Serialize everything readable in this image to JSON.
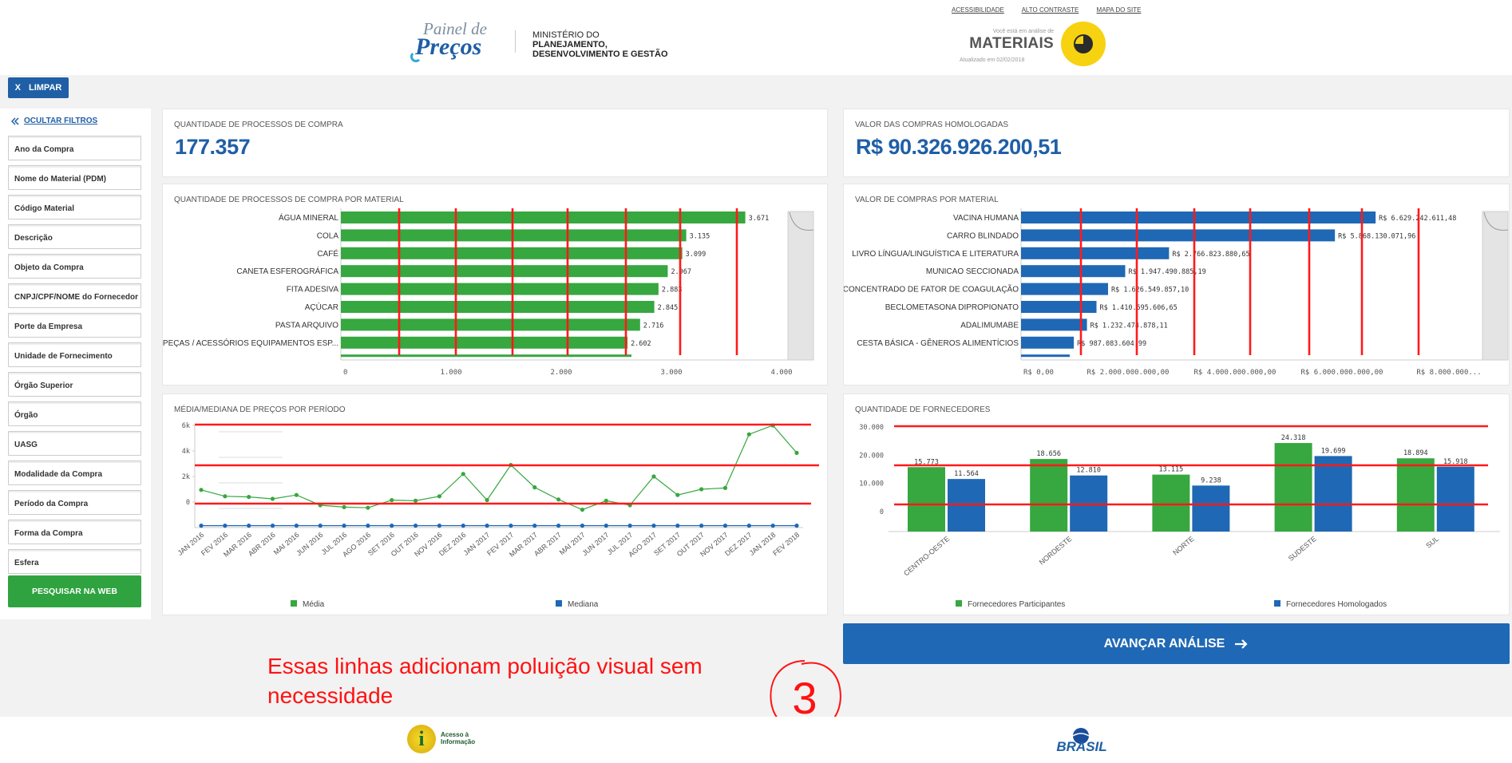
{
  "header": {
    "brand": {
      "line1": "Painel de",
      "line2": "Preços"
    },
    "ministry": {
      "line1": "MINISTÉRIO DO",
      "line2": "PLANEJAMENTO,",
      "line3": "DESENVOLVIMENTO E GESTÃO"
    },
    "links": [
      "ACESSIBILIDADE",
      "ALTO CONTRASTE",
      "MAPA DO SITE"
    ],
    "context": {
      "prefix": "Você está em análise de",
      "title": "MATERIAIS",
      "updated": "Atualizado em 02/02/2018"
    }
  },
  "toolbar": {
    "clear_icon": "X",
    "clear_label": "LIMPAR"
  },
  "sidebar": {
    "hide_label": "OCULTAR FILTROS",
    "filters": [
      "Ano da Compra",
      "Nome do Material (PDM)",
      "Código Material",
      "Descrição",
      "Objeto da Compra",
      "CNPJ/CPF/NOME do Fornecedor",
      "Porte da Empresa",
      "Unidade de Fornecimento",
      "Órgão Superior",
      "Órgão",
      "UASG",
      "Modalidade da Compra",
      "Período da Compra",
      "Forma da Compra",
      "Esfera"
    ],
    "search_label": "PESQUISAR NA WEB"
  },
  "kpis": {
    "processes": {
      "title": "QUANTIDADE DE PROCESSOS DE COMPRA",
      "value": "177.357"
    },
    "value": {
      "title": "VALOR DAS COMPRAS HOMOLOGADAS",
      "value": "R$ 90.326.926.200,51"
    }
  },
  "colors": {
    "green": "#37a73f",
    "blue": "#1f68b5",
    "red": "#ff1a1a",
    "annotation": "#ff1212"
  },
  "chart_data": [
    {
      "type": "bar",
      "orientation": "horizontal",
      "title": "QUANTIDADE DE PROCESSOS DE COMPRA POR MATERIAL",
      "categories": [
        "ÁGUA MINERAL",
        "COLA",
        "CAFÉ",
        "CANETA ESFEROGRÁFICA",
        "FITA ADESIVA",
        "AÇÚCAR",
        "PASTA ARQUIVO",
        "PEÇAS / ACESSÓRIOS EQUIPAMENTOS ESP..."
      ],
      "values": [
        3671,
        3135,
        3099,
        2967,
        2883,
        2845,
        2716,
        2602
      ],
      "labels": [
        "3.671",
        "3.135",
        "3.099",
        "2.967",
        "2.883",
        "2.845",
        "2.716",
        "2.602"
      ],
      "xlim": [
        0,
        4000
      ],
      "xticks": [
        {
          "v": 0,
          "l": "0"
        },
        {
          "v": 1000,
          "l": "1.000"
        },
        {
          "v": 2000,
          "l": "2.000"
        },
        {
          "v": 3000,
          "l": "3.000"
        },
        {
          "v": 4000,
          "l": "4.000"
        }
      ],
      "color": "#37a73f"
    },
    {
      "type": "bar",
      "orientation": "horizontal",
      "title": "VALOR DE COMPRAS POR MATERIAL",
      "categories": [
        "VACINA HUMANA",
        "CARRO BLINDADO",
        "LIVRO LÍNGUA/LINGUÍSTICA E LITERATURA",
        "MUNICAO SECCIONADA",
        "CONCENTRADO DE FATOR DE COAGULAÇÃO",
        "BECLOMETASONA DIPROPIONATO",
        "ADALIMUMABE",
        "CESTA BÁSICA - GÊNEROS ALIMENTÍCIOS"
      ],
      "values": [
        6629242611.48,
        5868130071.96,
        2766823880.65,
        1947490885.19,
        1626549857.1,
        1410595606.65,
        1232474878.11,
        987083604.99
      ],
      "labels": [
        "R$ 6.629.242.611,48",
        "R$ 5.868.130.071,96",
        "R$ 2.766.823.880,65",
        "R$ 1.947.490.885,19",
        "R$ 1.626.549.857,10",
        "R$ 1.410.595.606,65",
        "R$ 1.232.474.878,11",
        "R$ 987.083.604,99"
      ],
      "xlim": [
        0,
        8000000000
      ],
      "xticks": [
        {
          "v": 0,
          "l": "R$ 0,00"
        },
        {
          "v": 2000000000,
          "l": "R$ 2.000.000.000,00"
        },
        {
          "v": 4000000000,
          "l": "R$ 4.000.000.000,00"
        },
        {
          "v": 6000000000,
          "l": "R$ 6.000.000.000,00"
        },
        {
          "v": 8000000000,
          "l": "R$ 8.000.000..."
        }
      ],
      "color": "#1f68b5"
    },
    {
      "type": "line",
      "title": "MÉDIA/MEDIANA DE PREÇOS POR PERÍODO",
      "categories": [
        "JAN 2016",
        "FEV 2016",
        "MAR 2016",
        "ABR 2016",
        "MAI 2016",
        "JUN 2016",
        "JUL 2016",
        "AGO 2016",
        "SET 2016",
        "OUT 2016",
        "NOV 2016",
        "DEZ 2016",
        "JAN 2017",
        "FEV 2017",
        "MAR 2017",
        "ABR 2017",
        "MAI 2017",
        "JUN 2017",
        "JUL 2017",
        "AGO 2017",
        "SET 2017",
        "OUT 2017",
        "NOV 2017",
        "DEZ 2017",
        "JAN 2018",
        "FEV 2018"
      ],
      "series": [
        {
          "name": "Média",
          "color": "#37a73f",
          "values": [
            950,
            450,
            400,
            250,
            550,
            -250,
            -400,
            -450,
            150,
            100,
            450,
            2200,
            150,
            2900,
            1150,
            200,
            -600,
            100,
            -250,
            2000,
            550,
            1000,
            1100,
            5300,
            6000,
            3850
          ]
        },
        {
          "name": "Mediana",
          "color": "#1f68b5",
          "values": [
            -1850,
            -1850,
            -1850,
            -1850,
            -1850,
            -1850,
            -1850,
            -1850,
            -1850,
            -1850,
            -1850,
            -1850,
            -1850,
            -1850,
            -1850,
            -1850,
            -1850,
            -1850,
            -1850,
            -1850,
            -1850,
            -1850,
            -1850,
            -1850,
            -1850,
            -1850
          ]
        }
      ],
      "ylim": [
        -2000,
        6000
      ],
      "yticks": [
        {
          "v": 0,
          "l": "0"
        },
        {
          "v": 2000,
          "l": "2k"
        },
        {
          "v": 4000,
          "l": "4k"
        },
        {
          "v": 6000,
          "l": "6k"
        }
      ],
      "legend": "bottom"
    },
    {
      "type": "bar",
      "title": "QUANTIDADE DE FORNECEDORES",
      "categories": [
        "CENTRO-OESTE",
        "NORDESTE",
        "NORTE",
        "SUDESTE",
        "SUL"
      ],
      "series": [
        {
          "name": "Fornecedores Participantes",
          "color": "#37a73f",
          "values": [
            15773,
            18656,
            13115,
            24318,
            18894
          ],
          "labels": [
            "15.773",
            "18.656",
            "13.115",
            "24.318",
            "18.894"
          ]
        },
        {
          "name": "Fornecedores Homologados",
          "color": "#1f68b5",
          "values": [
            11564,
            12810,
            9238,
            19699,
            15918
          ],
          "labels": [
            "11.564",
            "12.810",
            "9.238",
            "19.699",
            "15.918"
          ]
        }
      ],
      "ylim": [
        -10000,
        30000
      ],
      "yticks": [
        {
          "v": 0,
          "l": "0"
        },
        {
          "v": 10000,
          "l": "10.000"
        },
        {
          "v": 20000,
          "l": "20.000"
        },
        {
          "v": 30000,
          "l": "30.000"
        }
      ],
      "legend": "bottom"
    }
  ],
  "action": {
    "advance_label": "AVANÇAR ANÁLISE"
  },
  "annotation": {
    "text": "Essas linhas adicionam poluição visual sem necessidade",
    "number": "3"
  },
  "footer": {
    "access_label": "Acesso à Informação",
    "gov_label": "BRASIL"
  }
}
